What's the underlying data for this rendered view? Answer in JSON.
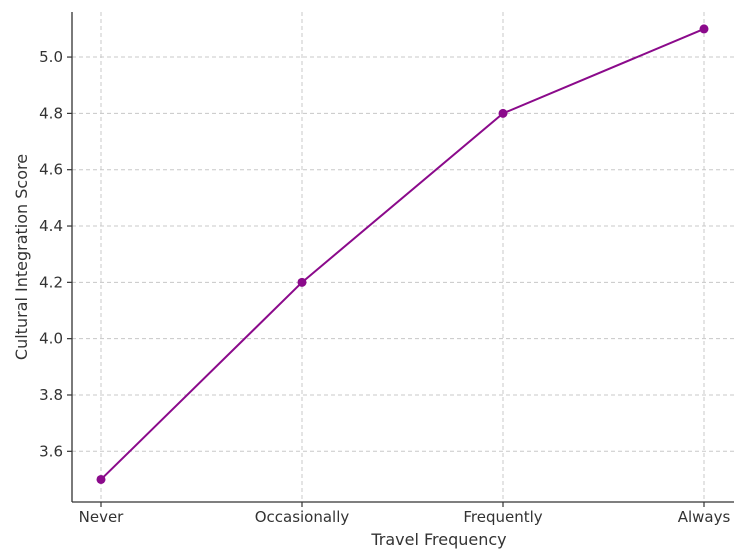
{
  "chart_data": {
    "type": "line",
    "title": "",
    "xlabel": "Travel Frequency",
    "ylabel": "Cultural Integration Score",
    "categories": [
      "Never",
      "Occasionally",
      "Frequently",
      "Always"
    ],
    "series": [
      {
        "values": [
          3.5,
          4.2,
          4.8,
          5.1
        ]
      }
    ],
    "ylim": [
      3.42,
      5.16
    ],
    "yticks": [
      "3.6",
      "3.8",
      "4.0",
      "4.2",
      "4.4",
      "4.6",
      "4.8",
      "5.0"
    ],
    "grid": true,
    "line_color": "#8b0a8b",
    "marker": "circle"
  }
}
